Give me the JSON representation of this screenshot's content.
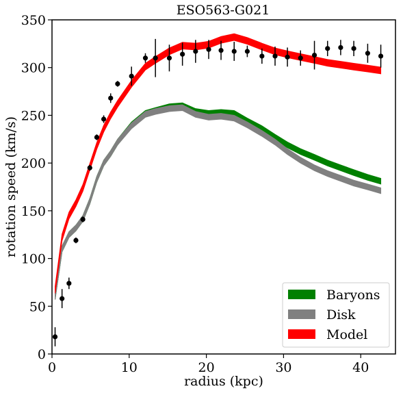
{
  "chart_data": {
    "type": "line",
    "title": "ESO563-G021",
    "xlabel": "radius (kpc)",
    "ylabel": "rotation speed (km/s)",
    "xlim": [
      0,
      44.5
    ],
    "ylim": [
      0,
      350
    ],
    "xticks": [
      0,
      10,
      20,
      30,
      40
    ],
    "yticks": [
      0,
      50,
      100,
      150,
      200,
      250,
      300,
      350
    ],
    "grid": false,
    "legend_position": "bottom-right",
    "observed": {
      "color": "#000000",
      "points": [
        {
          "x": 0.4,
          "y": 18,
          "err": 10
        },
        {
          "x": 1.3,
          "y": 58,
          "err": 10
        },
        {
          "x": 2.2,
          "y": 74,
          "err": 6
        },
        {
          "x": 3.1,
          "y": 119,
          "err": 3
        },
        {
          "x": 4.0,
          "y": 141,
          "err": 3
        },
        {
          "x": 4.9,
          "y": 195,
          "err": 3
        },
        {
          "x": 5.8,
          "y": 227,
          "err": 3
        },
        {
          "x": 6.7,
          "y": 246,
          "err": 4
        },
        {
          "x": 7.6,
          "y": 268,
          "err": 5
        },
        {
          "x": 8.5,
          "y": 283,
          "err": 3
        },
        {
          "x": 10.3,
          "y": 291,
          "err": 10
        },
        {
          "x": 12.1,
          "y": 310,
          "err": 5
        },
        {
          "x": 13.4,
          "y": 310,
          "err": 20
        },
        {
          "x": 15.2,
          "y": 310,
          "err": 14
        },
        {
          "x": 16.9,
          "y": 314,
          "err": 12
        },
        {
          "x": 18.6,
          "y": 317,
          "err": 12
        },
        {
          "x": 20.3,
          "y": 319,
          "err": 10
        },
        {
          "x": 21.9,
          "y": 318,
          "err": 10
        },
        {
          "x": 23.6,
          "y": 317,
          "err": 10
        },
        {
          "x": 25.3,
          "y": 317,
          "err": 6
        },
        {
          "x": 27.2,
          "y": 312,
          "err": 8
        },
        {
          "x": 28.9,
          "y": 312,
          "err": 10
        },
        {
          "x": 30.5,
          "y": 311,
          "err": 10
        },
        {
          "x": 32.2,
          "y": 310,
          "err": 8
        },
        {
          "x": 34.0,
          "y": 313,
          "err": 15
        },
        {
          "x": 35.7,
          "y": 320,
          "err": 8
        },
        {
          "x": 37.4,
          "y": 321,
          "err": 8
        },
        {
          "x": 39.1,
          "y": 320,
          "err": 8
        },
        {
          "x": 40.9,
          "y": 315,
          "err": 10
        },
        {
          "x": 42.6,
          "y": 312,
          "err": 12
        }
      ]
    },
    "series": [
      {
        "name": "Baryons",
        "color": "#008000",
        "x": [
          0.4,
          1.3,
          2.2,
          3.1,
          4.0,
          4.9,
          5.8,
          6.7,
          7.6,
          8.5,
          10.3,
          12.1,
          13.4,
          15.2,
          16.9,
          18.6,
          20.3,
          21.9,
          23.6,
          25.3,
          27.2,
          28.9,
          30.5,
          32.2,
          34.0,
          35.7,
          37.4,
          39.1,
          40.9,
          42.6
        ],
        "y": [
          60,
          110,
          125,
          132,
          142,
          160,
          183,
          200,
          210,
          222,
          240,
          252,
          255,
          259,
          260,
          254,
          252,
          253,
          252,
          244,
          236,
          227,
          219,
          212,
          206,
          200,
          195,
          190,
          185,
          181
        ],
        "band": 3
      },
      {
        "name": "Disk",
        "color": "#808080",
        "x": [
          0.4,
          1.3,
          2.2,
          3.1,
          4.0,
          4.9,
          5.8,
          6.7,
          7.6,
          8.5,
          10.3,
          12.1,
          13.4,
          15.2,
          16.9,
          18.6,
          20.3,
          21.9,
          23.6,
          25.3,
          27.2,
          28.9,
          30.5,
          32.2,
          34.0,
          35.7,
          37.4,
          39.1,
          40.9,
          42.6
        ],
        "y": [
          60,
          110,
          125,
          132,
          142,
          160,
          183,
          200,
          210,
          222,
          239,
          251,
          254,
          257,
          258,
          251,
          248,
          249,
          247,
          240,
          231,
          222,
          212,
          203,
          195,
          189,
          184,
          179,
          175,
          171
        ],
        "band": 3
      },
      {
        "name": "Model",
        "color": "#ff0000",
        "x": [
          0.4,
          1.3,
          2.2,
          3.1,
          4.0,
          4.9,
          5.8,
          6.7,
          7.6,
          8.5,
          10.3,
          12.1,
          13.4,
          15.2,
          16.9,
          18.6,
          20.3,
          21.9,
          23.6,
          25.3,
          27.2,
          28.9,
          30.5,
          32.2,
          34.0,
          35.7,
          37.4,
          39.1,
          40.9,
          42.6
        ],
        "y": [
          67,
          122,
          145,
          158,
          174,
          196,
          218,
          236,
          250,
          262,
          283,
          301,
          308,
          317,
          323,
          322,
          324,
          329,
          332,
          328,
          322,
          317,
          314,
          311,
          308,
          305,
          303,
          301,
          299,
          297
        ],
        "band": 3.5
      }
    ]
  }
}
